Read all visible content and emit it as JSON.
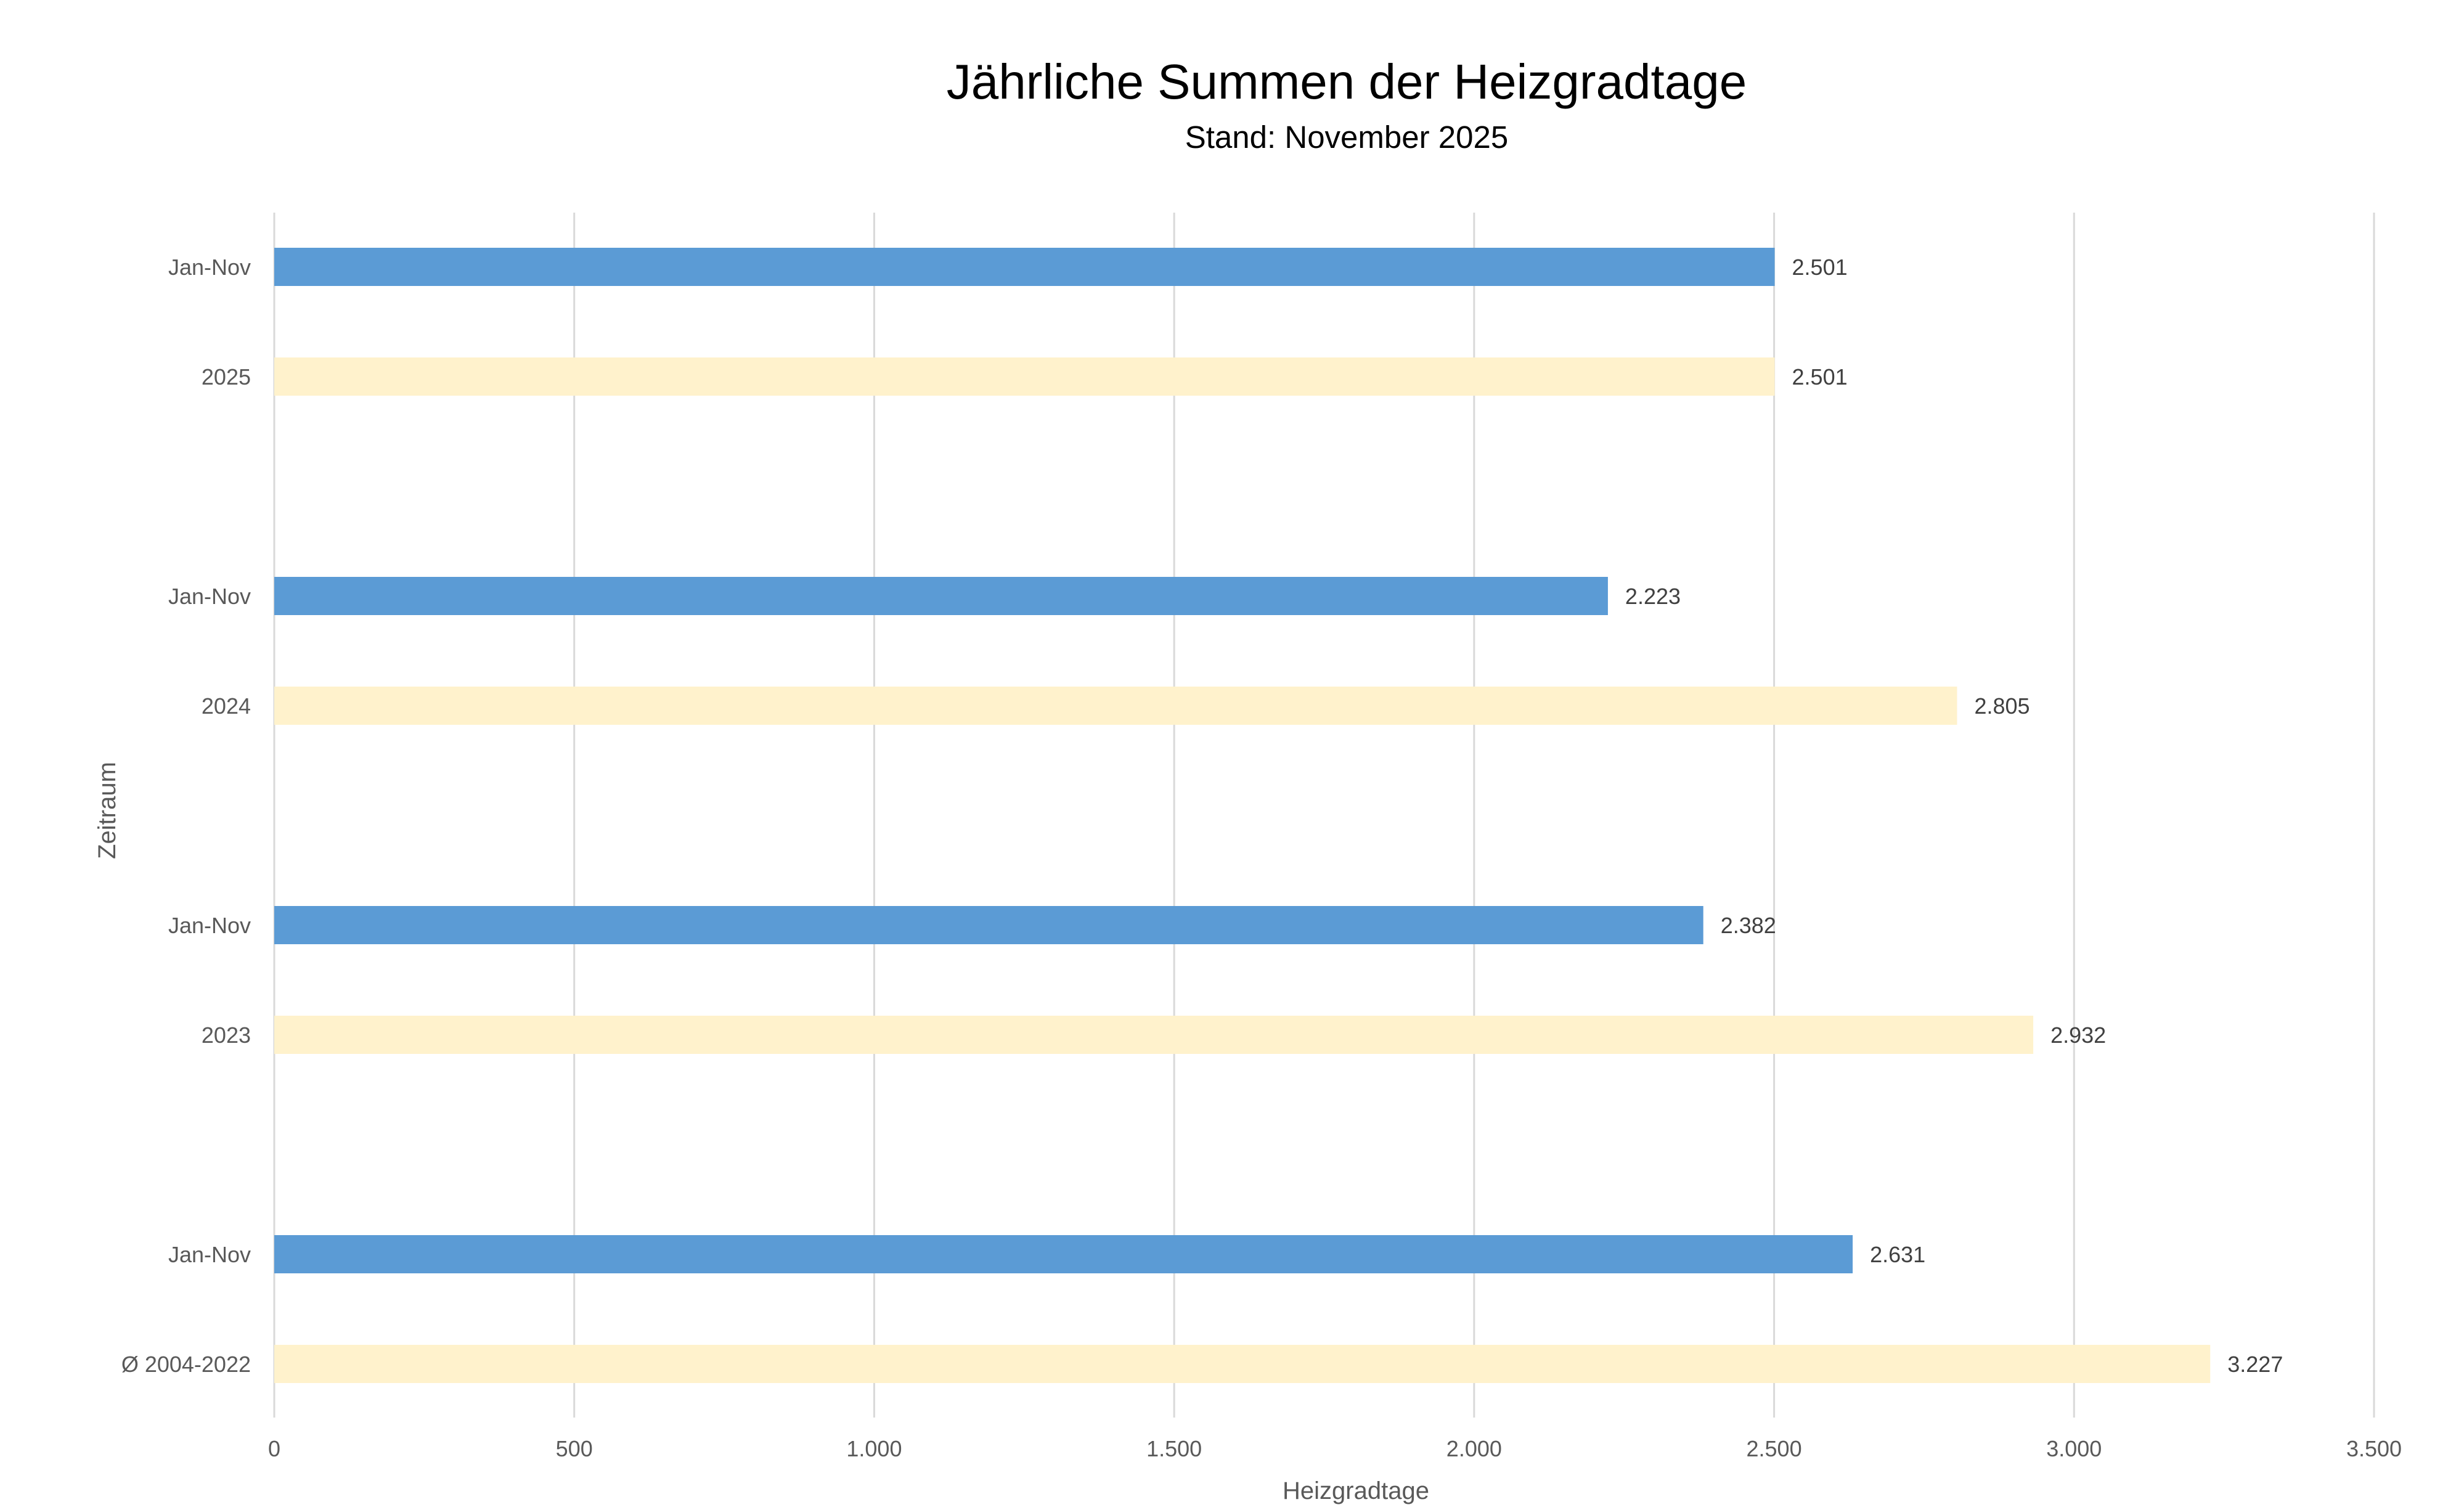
{
  "chart_data": {
    "type": "bar",
    "orientation": "horizontal",
    "title": "Jährliche Summen der Heizgradtage",
    "subtitle": "Stand: November 2025",
    "xlabel": "Heizgradtage",
    "ylabel": "Zeitraum",
    "xlim": [
      0,
      3500
    ],
    "x_ticks": [
      0,
      500,
      1000,
      1500,
      2000,
      2500,
      3000,
      3500
    ],
    "x_tick_labels": [
      "0",
      "500",
      "1.000",
      "1.500",
      "2.000",
      "2.500",
      "3.000",
      "3.500"
    ],
    "grid": true,
    "legend": "none",
    "groups": [
      {
        "bars": [
          {
            "label": "Jan-Nov",
            "value": 2501,
            "value_label": "2.501",
            "color": "#5b9bd5"
          },
          {
            "label": "2025",
            "value": 2501,
            "value_label": "2.501",
            "color": "#fff2cc"
          }
        ]
      },
      {
        "bars": [
          {
            "label": "Jan-Nov",
            "value": 2223,
            "value_label": "2.223",
            "color": "#5b9bd5"
          },
          {
            "label": "2024",
            "value": 2805,
            "value_label": "2.805",
            "color": "#fff2cc"
          }
        ]
      },
      {
        "bars": [
          {
            "label": "Jan-Nov",
            "value": 2382,
            "value_label": "2.382",
            "color": "#5b9bd5"
          },
          {
            "label": "2023",
            "value": 2932,
            "value_label": "2.932",
            "color": "#fff2cc"
          }
        ]
      },
      {
        "bars": [
          {
            "label": "Jan-Nov",
            "value": 2631,
            "value_label": "2.631",
            "color": "#5b9bd5"
          },
          {
            "label": "Ø 2004-2022",
            "value": 3227,
            "value_label": "3.227",
            "color": "#fff2cc"
          }
        ]
      }
    ]
  }
}
